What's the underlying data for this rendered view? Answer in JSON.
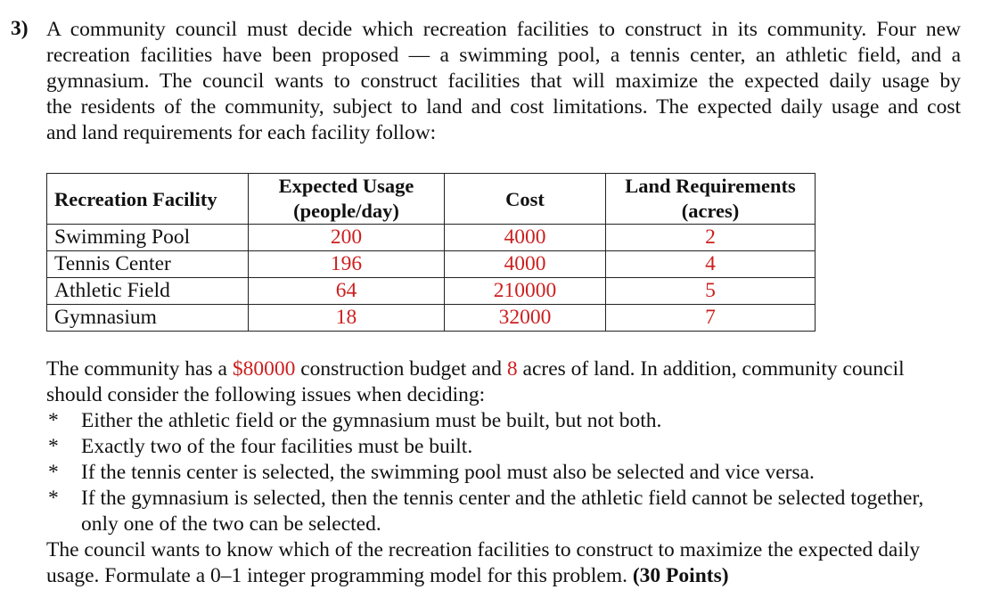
{
  "question": {
    "number": "3)",
    "intro_lines": [
      "A community council must decide which recreation facilities to construct in its community. Four new",
      "recreation facilities have been proposed — a swimming pool, a tennis center, an athletic field, and a",
      "gymnasium. The council wants to construct facilities that will maximize the expected daily usage by",
      "the residents of the community, subject to land and cost limitations. The expected daily usage and cost",
      "and land requirements for each facility follow:"
    ]
  },
  "table": {
    "headers": {
      "facility": "Recreation Facility",
      "usage_line1": "Expected Usage",
      "usage_line2": "(people/day)",
      "cost": "Cost",
      "land_line1": "Land Requirements",
      "land_line2": "(acres)"
    },
    "rows": [
      {
        "facility": "Swimming Pool",
        "usage": "200",
        "cost": "4000",
        "land": "2"
      },
      {
        "facility": "Tennis Center",
        "usage": "196",
        "cost": "4000",
        "land": "4"
      },
      {
        "facility": "Athletic Field",
        "usage": "64",
        "cost": "210000",
        "land": "5"
      },
      {
        "facility": "Gymnasium",
        "usage": "18",
        "cost": "32000",
        "land": "7"
      }
    ]
  },
  "constraints_intro": {
    "part1": "The community has a ",
    "budget": "$80000",
    "part2": " construction budget and ",
    "acres": "8",
    "part3": " acres of land. In addition, community council",
    "line2": "should consider the following issues when deciding:"
  },
  "bullets": [
    {
      "marker": "*",
      "lines": [
        "Either the athletic field or the gymnasium must be built, but not both."
      ]
    },
    {
      "marker": "*",
      "lines": [
        "Exactly two of the four facilities must be built."
      ]
    },
    {
      "marker": "*",
      "lines": [
        "If the tennis center is selected, the swimming pool must also be selected and vice versa."
      ]
    },
    {
      "marker": "*",
      "lines": [
        "If the gymnasium is selected, then the tennis center and the athletic field cannot be selected together,",
        "only one of the two can be selected."
      ]
    }
  ],
  "closing": {
    "line1": "The council wants to know which of the recreation facilities to construct to maximize the expected daily",
    "line2": "usage. Formulate a 0–1 integer programming model for this problem. ",
    "points": "(30 Points)"
  },
  "colors": {
    "highlight_red": "#cc1f1f",
    "text": "#111111"
  }
}
